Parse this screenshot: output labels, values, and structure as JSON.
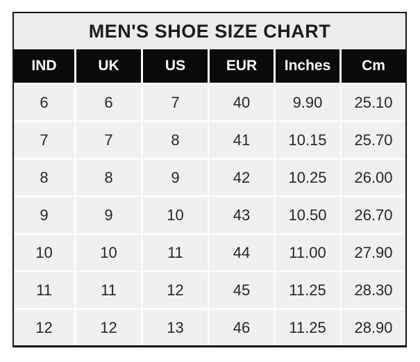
{
  "colors": {
    "frame_border": "#141414",
    "title_background": "#ececea",
    "title_text": "#1c1c1a",
    "header_background": "#0a0a0a",
    "header_text": "#fdfdfd",
    "cell_background": "#f0f0ee",
    "cell_text": "#262624",
    "separator": "#fbfbfa",
    "page_background": "#ffffff"
  },
  "chart_data": {
    "type": "table",
    "title": "MEN'S SHOE SIZE CHART",
    "columns": [
      "IND",
      "UK",
      "US",
      "EUR",
      "Inches",
      "Cm"
    ],
    "rows": [
      [
        "6",
        "6",
        "7",
        "40",
        "9.90",
        "25.10"
      ],
      [
        "7",
        "7",
        "8",
        "41",
        "10.15",
        "25.70"
      ],
      [
        "8",
        "8",
        "9",
        "42",
        "10.25",
        "26.00"
      ],
      [
        "9",
        "9",
        "10",
        "43",
        "10.50",
        "26.70"
      ],
      [
        "10",
        "10",
        "11",
        "44",
        "11.00",
        "27.90"
      ],
      [
        "11",
        "11",
        "12",
        "45",
        "11.25",
        "28.30"
      ],
      [
        "12",
        "12",
        "13",
        "46",
        "11.25",
        "28.90"
      ]
    ]
  }
}
